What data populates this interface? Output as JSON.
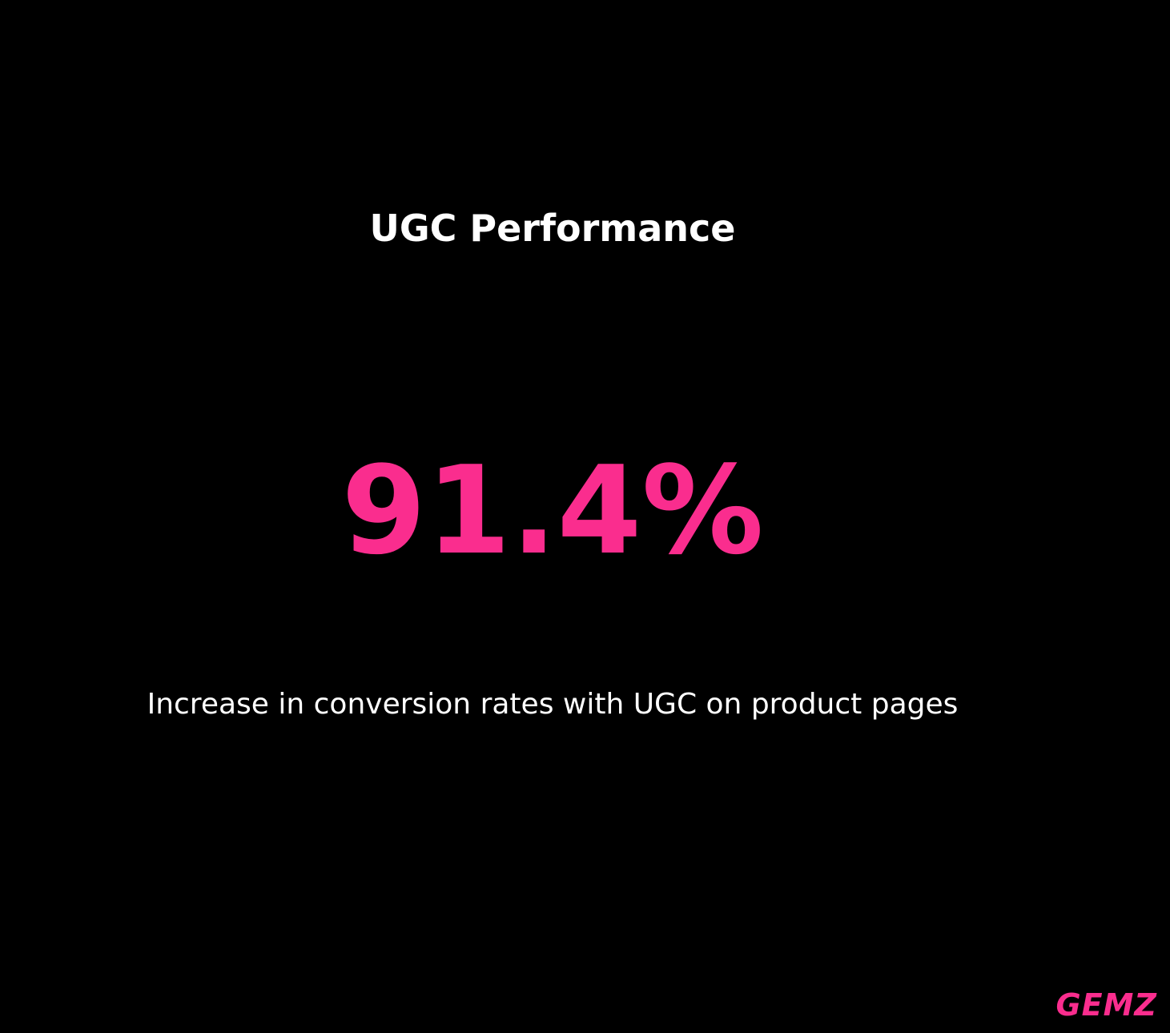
{
  "page": {
    "background_color": "#000000",
    "accent_color": "#FA2D8E",
    "text_color": "#FFFFFF"
  },
  "infographic": {
    "title": "UGC Performance",
    "metric_value": "91.4%",
    "description": "Increase in conversion rates with UGC on product pages",
    "brand": "GEMZ"
  },
  "chart_data": {
    "type": "kpi",
    "title": "UGC Performance",
    "value": 91.4,
    "unit": "%",
    "value_display": "91.4%",
    "label": "Increase in conversion rates with UGC on product pages",
    "accent_color": "#FA2D8E",
    "background_color": "#000000",
    "watermark": "GEMZ"
  }
}
